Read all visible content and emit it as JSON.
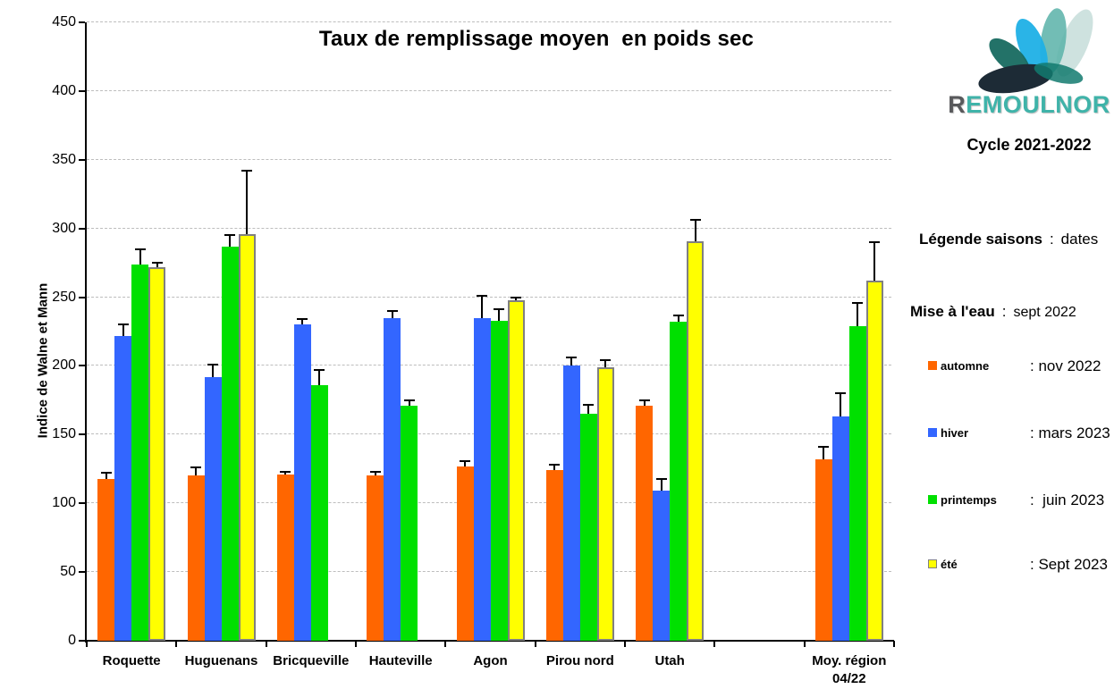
{
  "title": "Taux de remplissage moyen  en poids sec",
  "brand": {
    "logo_r": "R",
    "logo_rest": "EMOULNOR",
    "logo_r_color": "#58595b",
    "logo_rest_color": "#3fb3a9",
    "cycle": "Cycle 2021-2022"
  },
  "side_panel": {
    "legend_title": "Légende saisons",
    "legend_title_sep": ":",
    "legend_title_value": "dates",
    "mise_label": "Mise à l'eau",
    "mise_sep": ":",
    "mise_value": "sept 2022",
    "items": [
      {
        "name": "automne",
        "date": ": nov 2022",
        "color": "#FF6600",
        "border": ""
      },
      {
        "name": "hiver",
        "date": ": mars 2023",
        "color": "#3366FF",
        "border": ""
      },
      {
        "name": "printemps",
        "date": ":  juin 2023",
        "color": "#00E000",
        "border": ""
      },
      {
        "name": "été",
        "date": ": Sept 2023",
        "color": "#FFFF00",
        "border": "#808080"
      }
    ]
  },
  "chart_data": {
    "type": "bar",
    "title": "Taux de remplissage moyen  en poids sec",
    "xlabel": "",
    "ylabel": "Indice de Walne et Mann",
    "ylim": [
      0,
      450
    ],
    "ytick_step": 50,
    "grid": "horizontal-dotted",
    "legend_position": "right-panel",
    "categories": [
      "Roquette",
      "Huguenans",
      "Bricqueville",
      "Hauteville",
      "Agon",
      "Pirou nord",
      "Utah",
      "",
      "Moy. région\n04/22"
    ],
    "series": [
      {
        "name": "automne",
        "color": "#FF6600",
        "border": "",
        "values": [
          118,
          120,
          121,
          120,
          127,
          124,
          171,
          null,
          132
        ],
        "errors_plus": [
          4,
          6,
          2,
          3,
          4,
          4,
          4,
          null,
          9
        ]
      },
      {
        "name": "hiver",
        "color": "#3366FF",
        "border": "",
        "values": [
          222,
          192,
          230,
          235,
          235,
          200,
          109,
          null,
          163
        ],
        "errors_plus": [
          8,
          9,
          4,
          5,
          16,
          6,
          9,
          null,
          17
        ]
      },
      {
        "name": "printemps",
        "color": "#00E000",
        "border": "",
        "values": [
          274,
          287,
          186,
          171,
          233,
          165,
          232,
          null,
          229
        ],
        "errors_plus": [
          11,
          8,
          11,
          4,
          8,
          7,
          5,
          null,
          17
        ]
      },
      {
        "name": "été",
        "color": "#FFFF00",
        "border": "#808080",
        "values": [
          272,
          296,
          null,
          null,
          248,
          199,
          291,
          null,
          262
        ],
        "errors_plus": [
          3,
          46,
          null,
          null,
          2,
          5,
          15,
          null,
          28
        ]
      }
    ]
  }
}
